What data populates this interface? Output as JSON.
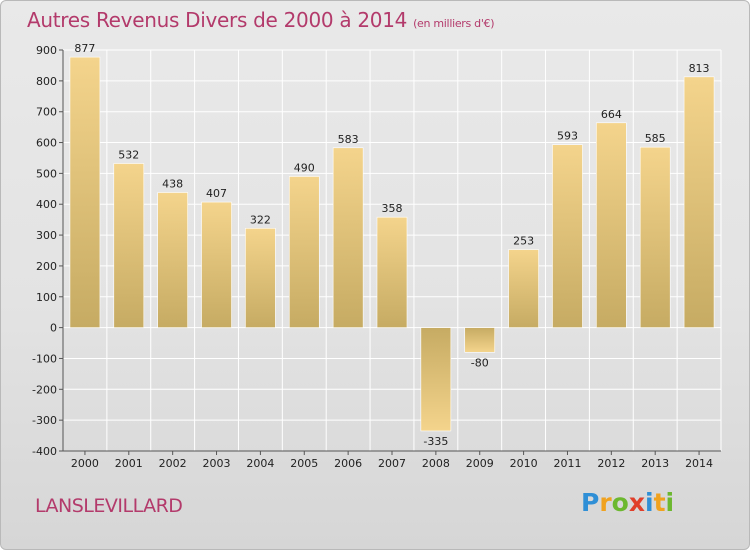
{
  "chart_data": {
    "type": "bar",
    "title": "Autres Revenus Divers de 2000 à 2014",
    "subtitle": "(en milliers d'€)",
    "categories": [
      "2000",
      "2001",
      "2002",
      "2003",
      "2004",
      "2005",
      "2006",
      "2007",
      "2008",
      "2009",
      "2010",
      "2011",
      "2012",
      "2013",
      "2014"
    ],
    "values": [
      877,
      532,
      438,
      407,
      322,
      490,
      583,
      358,
      -335,
      -80,
      253,
      593,
      664,
      585,
      813
    ],
    "ylim": [
      -400,
      900
    ],
    "yticks": [
      900,
      800,
      700,
      600,
      500,
      400,
      300,
      200,
      100,
      0,
      -100,
      -200,
      -300,
      -400
    ],
    "grid": true,
    "bar_color_top": "#f4d48c",
    "bar_color_bottom": "#c6ab63"
  },
  "footer": {
    "commune": "LANSLEVILLARD"
  },
  "logo": {
    "letters": [
      {
        "ch": "P",
        "color": "#2f8fd6"
      },
      {
        "ch": "r",
        "color": "#f0a21f"
      },
      {
        "ch": "o",
        "color": "#6cb82f"
      },
      {
        "ch": "x",
        "color": "#e03f2a"
      },
      {
        "ch": "i",
        "color": "#2f8fd6"
      },
      {
        "ch": "t",
        "color": "#f0a21f"
      },
      {
        "ch": "i",
        "color": "#6cb82f"
      }
    ]
  }
}
